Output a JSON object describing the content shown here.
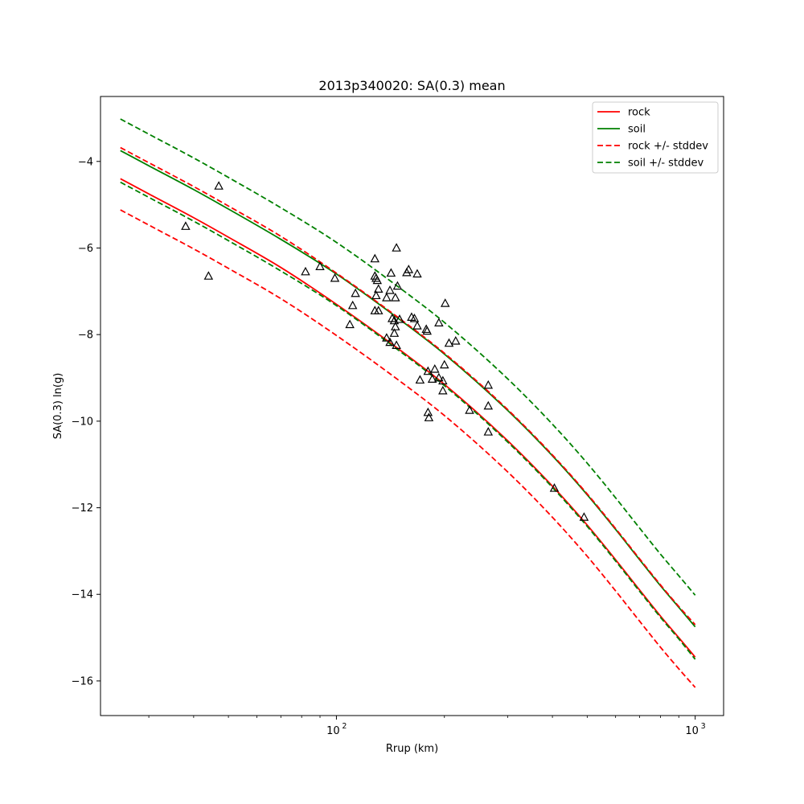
{
  "chart_data": {
    "type": "scatter",
    "title": "2013p340020: SA(0.3) mean",
    "xlabel": "Rrup (km)",
    "ylabel": "SA(0.3) ln(g)",
    "xscale": "log",
    "xlim": [
      22,
      1200
    ],
    "ylim": [
      -16.8,
      -2.5
    ],
    "xticks": [
      {
        "value": 100,
        "base": "10",
        "exp": "2"
      },
      {
        "value": 1000,
        "base": "10",
        "exp": "3"
      }
    ],
    "yticks": [
      -4,
      -6,
      -8,
      -10,
      -12,
      -14,
      -16
    ],
    "legend_position": "top-right",
    "grid": false,
    "series": [
      {
        "name": "rock",
        "color": "#ff0000",
        "dash": "solid",
        "x": [
          25,
          30,
          40,
          50,
          70,
          100,
          150,
          200,
          300,
          400,
          500,
          600,
          700,
          800,
          900,
          1000
        ],
        "y": [
          -4.4,
          -4.75,
          -5.3,
          -5.75,
          -6.45,
          -7.3,
          -8.35,
          -9.15,
          -10.45,
          -11.5,
          -12.4,
          -13.2,
          -13.9,
          -14.5,
          -15.0,
          -15.45
        ]
      },
      {
        "name": "soil",
        "color": "#008000",
        "dash": "solid",
        "x": [
          25,
          30,
          40,
          50,
          70,
          100,
          150,
          200,
          300,
          400,
          500,
          600,
          700,
          800,
          900,
          1000
        ],
        "y": [
          -3.75,
          -4.1,
          -4.65,
          -5.1,
          -5.8,
          -6.6,
          -7.65,
          -8.45,
          -9.75,
          -10.8,
          -11.7,
          -12.5,
          -13.2,
          -13.8,
          -14.3,
          -14.75
        ]
      },
      {
        "name": "rock +/- stddev",
        "color": "#ff0000",
        "dash": "dashed",
        "x": [
          25,
          30,
          40,
          50,
          70,
          100,
          150,
          200,
          300,
          400,
          500,
          600,
          700,
          800,
          900,
          1000
        ],
        "y": [
          -5.12,
          -5.47,
          -6.02,
          -6.47,
          -7.17,
          -8.02,
          -9.07,
          -9.87,
          -11.17,
          -12.22,
          -13.12,
          -13.92,
          -14.62,
          -15.22,
          -15.72,
          -16.15
        ]
      },
      {
        "name": "rock +/- stddev",
        "color": "#ff0000",
        "dash": "dashed",
        "in_legend": false,
        "x": [
          25,
          30,
          40,
          50,
          70,
          100,
          150,
          200,
          300,
          400,
          500,
          600,
          700,
          800,
          900,
          1000
        ],
        "y": [
          -3.68,
          -4.03,
          -4.58,
          -5.03,
          -5.73,
          -6.58,
          -7.63,
          -8.43,
          -9.73,
          -10.78,
          -11.68,
          -12.48,
          -13.18,
          -13.78,
          -14.28,
          -14.7
        ]
      },
      {
        "name": "soil +/- stddev",
        "color": "#008000",
        "dash": "dashed",
        "x": [
          25,
          30,
          40,
          50,
          70,
          100,
          150,
          200,
          300,
          400,
          500,
          600,
          700,
          800,
          900,
          1000
        ],
        "y": [
          -3.02,
          -3.37,
          -3.92,
          -4.37,
          -5.07,
          -5.87,
          -6.92,
          -7.72,
          -9.02,
          -10.07,
          -10.97,
          -11.77,
          -12.47,
          -13.07,
          -13.57,
          -14.02
        ]
      },
      {
        "name": "soil +/- stddev",
        "color": "#008000",
        "dash": "dashed",
        "in_legend": false,
        "x": [
          25,
          30,
          40,
          50,
          70,
          100,
          150,
          200,
          300,
          400,
          500,
          600,
          700,
          800,
          900,
          1000
        ],
        "y": [
          -4.48,
          -4.83,
          -5.38,
          -5.83,
          -6.53,
          -7.33,
          -8.38,
          -9.18,
          -10.48,
          -11.53,
          -12.43,
          -13.23,
          -13.93,
          -14.53,
          -15.03,
          -15.5
        ]
      }
    ],
    "observations": {
      "marker": "triangle",
      "edgecolor": "#000000",
      "points": [
        [
          38,
          -5.5
        ],
        [
          44,
          -6.65
        ],
        [
          47,
          -4.57
        ],
        [
          82,
          -6.55
        ],
        [
          90,
          -6.43
        ],
        [
          99,
          -6.7
        ],
        [
          109,
          -7.77
        ],
        [
          111,
          -7.33
        ],
        [
          113,
          -7.05
        ],
        [
          128,
          -6.25
        ],
        [
          128,
          -6.65
        ],
        [
          129,
          -6.7
        ],
        [
          130,
          -6.75
        ],
        [
          128,
          -7.45
        ],
        [
          129,
          -7.1
        ],
        [
          131,
          -7.45
        ],
        [
          131,
          -6.95
        ],
        [
          138,
          -7.15
        ],
        [
          138,
          -8.08
        ],
        [
          141,
          -8.18
        ],
        [
          141,
          -6.98
        ],
        [
          142,
          -6.58
        ],
        [
          143,
          -7.63
        ],
        [
          145,
          -7.68
        ],
        [
          145,
          -7.97
        ],
        [
          146,
          -7.82
        ],
        [
          146,
          -7.15
        ],
        [
          147,
          -8.25
        ],
        [
          148,
          -6.88
        ],
        [
          147,
          -6.0
        ],
        [
          150,
          -7.65
        ],
        [
          157,
          -6.57
        ],
        [
          159,
          -6.5
        ],
        [
          162,
          -7.6
        ],
        [
          165,
          -7.63
        ],
        [
          168,
          -6.6
        ],
        [
          168,
          -7.8
        ],
        [
          171,
          -9.05
        ],
        [
          178,
          -7.88
        ],
        [
          179,
          -7.92
        ],
        [
          180,
          -8.85
        ],
        [
          180,
          -9.8
        ],
        [
          181,
          -9.92
        ],
        [
          185,
          -9.03
        ],
        [
          188,
          -8.8
        ],
        [
          193,
          -9.0
        ],
        [
          193,
          -7.73
        ],
        [
          198,
          -9.3
        ],
        [
          198,
          -9.07
        ],
        [
          200,
          -8.7
        ],
        [
          201,
          -7.28
        ],
        [
          206,
          -8.2
        ],
        [
          215,
          -8.15
        ],
        [
          235,
          -9.75
        ],
        [
          265,
          -9.17
        ],
        [
          265,
          -9.65
        ],
        [
          265,
          -10.25
        ],
        [
          405,
          -11.55
        ],
        [
          490,
          -12.22
        ]
      ]
    }
  }
}
